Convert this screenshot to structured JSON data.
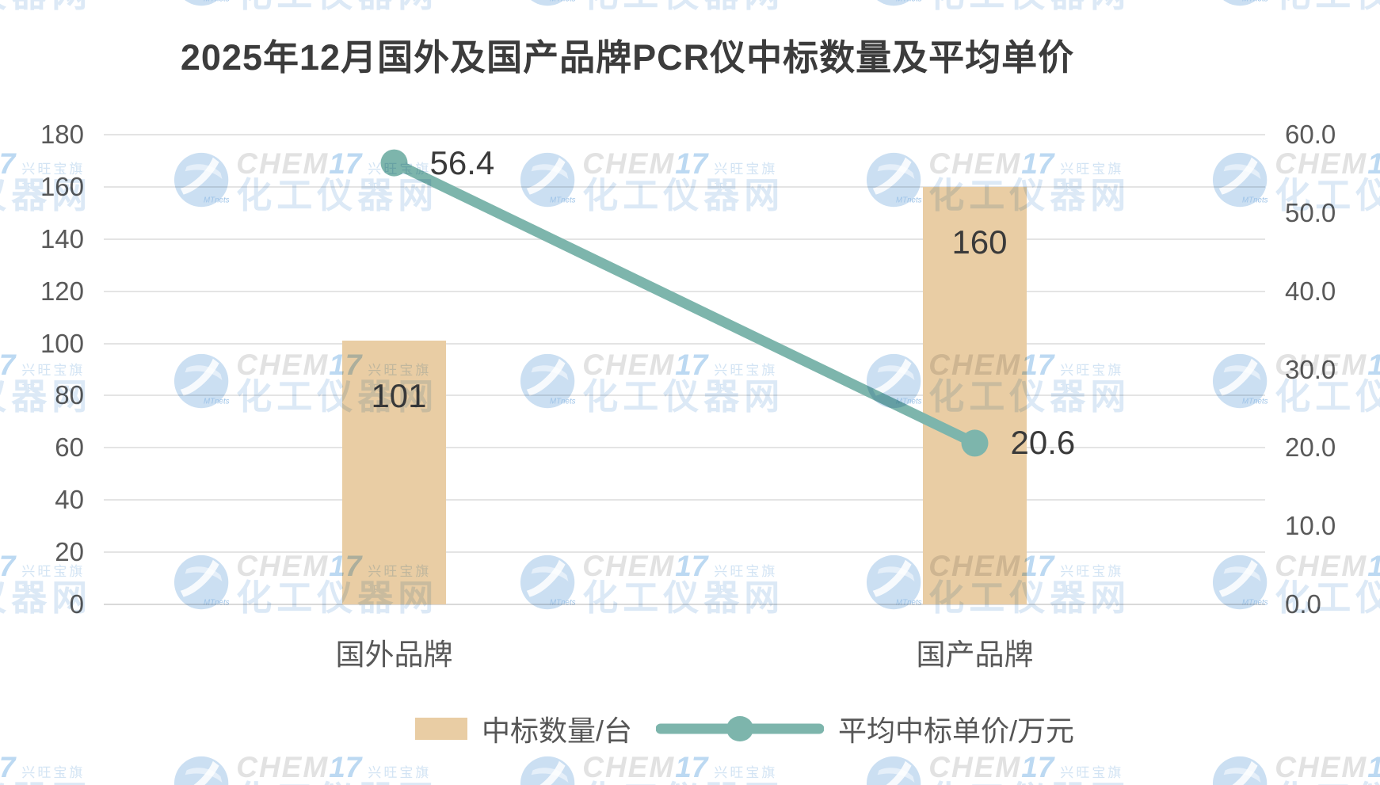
{
  "title": "2025年12月国外及国产品牌PCR仪中标数量及平均单价",
  "chart_data": {
    "type": "bar",
    "subtype": "combo bar + line, dual y-axes",
    "categories": [
      "国外品牌",
      "国产品牌"
    ],
    "series": [
      {
        "name": "中标数量/台",
        "type": "bar",
        "axis": "left",
        "values": [
          101,
          160
        ],
        "labels": [
          "101",
          "160"
        ],
        "color": "#e9cda4"
      },
      {
        "name": "平均中标单价/万元",
        "type": "line",
        "axis": "right",
        "values": [
          56.4,
          20.6
        ],
        "labels": [
          "56.4",
          "20.6"
        ],
        "color": "#7db5ac"
      }
    ],
    "left_axis": {
      "min": 0,
      "max": 180,
      "step": 20,
      "ticks": [
        "0",
        "20",
        "40",
        "60",
        "80",
        "100",
        "120",
        "140",
        "160",
        "180"
      ]
    },
    "right_axis": {
      "min": 0,
      "max": 60,
      "step": 10,
      "ticks": [
        "0.0",
        "10.0",
        "20.0",
        "30.0",
        "40.0",
        "50.0",
        "60.0"
      ]
    },
    "grid": true,
    "legend_position": "bottom"
  },
  "watermark": {
    "brand": "CHEM",
    "brand_num": "17",
    "tagline": "兴旺宝旗下",
    "site": "化工仪器网",
    "logo_text": "MTnets"
  },
  "colors": {
    "bar": "#e9cda4",
    "line": "#7db5ac",
    "gridline": "#e4e4e4",
    "axis_text": "#595959",
    "data_label_text": "#3a3a3a",
    "title_text": "#3c3c3c",
    "watermark_globe": "#cbdff2",
    "watermark_blue": "#bcd9f2",
    "watermark_gray": "#e2e2e2",
    "background": "#ffffff"
  }
}
